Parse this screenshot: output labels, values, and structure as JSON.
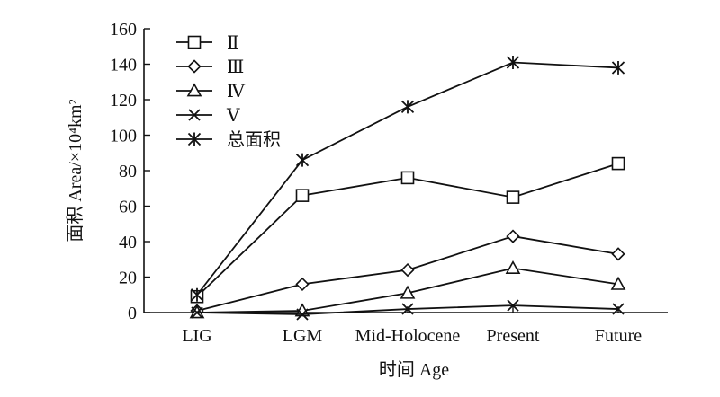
{
  "chart_data": {
    "type": "line",
    "categories": [
      "LIG",
      "LGM",
      "Mid-Holocene",
      "Present",
      "Future"
    ],
    "xlabel": "时间 Age",
    "ylabel": "面积 Area/×10⁴km²",
    "ylim": [
      0,
      160
    ],
    "yticks": [
      0,
      20,
      40,
      60,
      80,
      100,
      120,
      140,
      160
    ],
    "grid": false,
    "legend_position": "top-left",
    "series": [
      {
        "name": "Ⅱ",
        "marker": "square",
        "values": [
          9,
          66,
          76,
          65,
          84
        ]
      },
      {
        "name": "Ⅲ",
        "marker": "diamond",
        "values": [
          1,
          16,
          24,
          43,
          33
        ]
      },
      {
        "name": "Ⅳ",
        "marker": "triangle",
        "values": [
          0,
          1,
          11,
          25,
          16
        ]
      },
      {
        "name": "Ⅴ",
        "marker": "x",
        "values": [
          0,
          -1,
          2,
          4,
          2
        ]
      },
      {
        "name": "总面积",
        "marker": "star",
        "values": [
          10,
          86,
          116,
          141,
          138
        ]
      }
    ],
    "colors": {
      "line": "#111111",
      "axis": "#111111",
      "background": "#ffffff"
    }
  }
}
